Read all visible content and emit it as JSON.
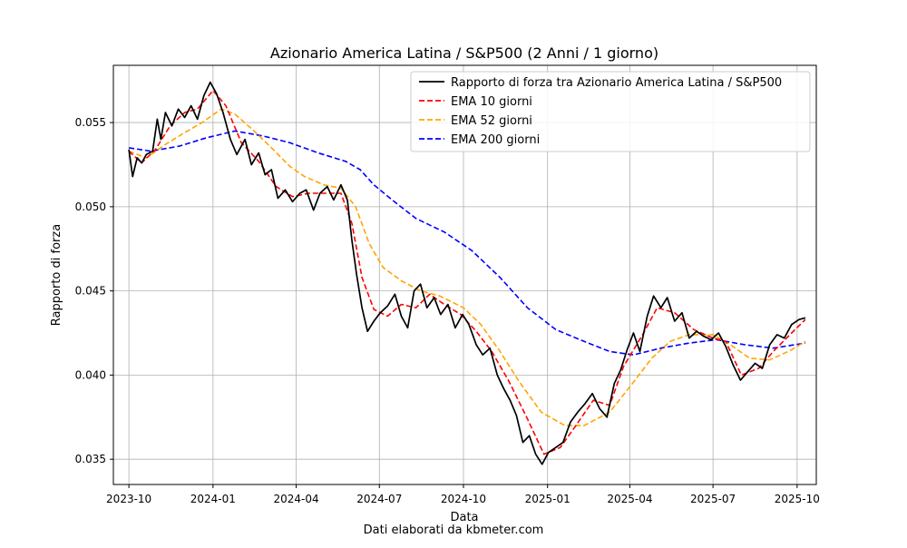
{
  "chart_data": {
    "type": "line",
    "title": "Azionario America Latina / S&P500 (2 Anni / 1 giorno)",
    "xlabel": "Data",
    "ylabel": "Rapporto di forza",
    "footer": "Dati elaborati da kbmeter.com",
    "x_ticks": [
      "2023-10",
      "2024-01",
      "2024-04",
      "2024-07",
      "2024-10",
      "2025-01",
      "2025-04",
      "2025-07",
      "2025-10"
    ],
    "y_ticks": [
      "0.035",
      "0.040",
      "0.045",
      "0.050",
      "0.055"
    ],
    "xlim": [
      "2023-09-14",
      "2025-10-22"
    ],
    "ylim": [
      0.0335,
      0.0584
    ],
    "grid": true,
    "legend_position": "top-right",
    "series": [
      {
        "name": "Rapporto di forza tra Azionario America Latina / S&P500",
        "color": "#000000",
        "style": "solid",
        "points": [
          [
            "2023-10-01",
            0.0534
          ],
          [
            "2023-10-05",
            0.0518
          ],
          [
            "2023-10-10",
            0.0529
          ],
          [
            "2023-10-15",
            0.0526
          ],
          [
            "2023-10-20",
            0.0531
          ],
          [
            "2023-10-27",
            0.0533
          ],
          [
            "2023-11-01",
            0.0552
          ],
          [
            "2023-11-05",
            0.054
          ],
          [
            "2023-11-10",
            0.0556
          ],
          [
            "2023-11-17",
            0.0548
          ],
          [
            "2023-11-24",
            0.0558
          ],
          [
            "2023-12-01",
            0.0553
          ],
          [
            "2023-12-08",
            0.056
          ],
          [
            "2023-12-15",
            0.0552
          ],
          [
            "2023-12-22",
            0.0566
          ],
          [
            "2023-12-29",
            0.0574
          ],
          [
            "2024-01-05",
            0.0567
          ],
          [
            "2024-01-12",
            0.0556
          ],
          [
            "2024-01-20",
            0.054
          ],
          [
            "2024-01-27",
            0.0531
          ],
          [
            "2024-02-05",
            0.054
          ],
          [
            "2024-02-12",
            0.0525
          ],
          [
            "2024-02-20",
            0.0532
          ],
          [
            "2024-02-27",
            0.0519
          ],
          [
            "2024-03-05",
            0.0522
          ],
          [
            "2024-03-12",
            0.0505
          ],
          [
            "2024-03-20",
            0.051
          ],
          [
            "2024-03-28",
            0.0503
          ],
          [
            "2024-04-05",
            0.0508
          ],
          [
            "2024-04-12",
            0.051
          ],
          [
            "2024-04-20",
            0.0498
          ],
          [
            "2024-04-27",
            0.0508
          ],
          [
            "2024-05-05",
            0.0512
          ],
          [
            "2024-05-12",
            0.0504
          ],
          [
            "2024-05-20",
            0.0513
          ],
          [
            "2024-05-27",
            0.0504
          ],
          [
            "2024-06-01",
            0.048
          ],
          [
            "2024-06-06",
            0.046
          ],
          [
            "2024-06-12",
            0.044
          ],
          [
            "2024-06-18",
            0.0426
          ],
          [
            "2024-06-25",
            0.0432
          ],
          [
            "2024-07-02",
            0.0437
          ],
          [
            "2024-07-10",
            0.0441
          ],
          [
            "2024-07-18",
            0.0448
          ],
          [
            "2024-07-25",
            0.0435
          ],
          [
            "2024-08-01",
            0.0428
          ],
          [
            "2024-08-08",
            0.045
          ],
          [
            "2024-08-15",
            0.0454
          ],
          [
            "2024-08-22",
            0.044
          ],
          [
            "2024-08-30",
            0.0446
          ],
          [
            "2024-09-06",
            0.0436
          ],
          [
            "2024-09-14",
            0.0442
          ],
          [
            "2024-09-22",
            0.0428
          ],
          [
            "2024-09-30",
            0.0436
          ],
          [
            "2024-10-07",
            0.043
          ],
          [
            "2024-10-15",
            0.0418
          ],
          [
            "2024-10-22",
            0.0412
          ],
          [
            "2024-10-30",
            0.0416
          ],
          [
            "2024-11-07",
            0.04
          ],
          [
            "2024-11-14",
            0.0392
          ],
          [
            "2024-11-21",
            0.0385
          ],
          [
            "2024-11-28",
            0.0376
          ],
          [
            "2024-12-05",
            0.036
          ],
          [
            "2024-12-12",
            0.0364
          ],
          [
            "2024-12-19",
            0.0353
          ],
          [
            "2024-12-26",
            0.0347
          ],
          [
            "2025-01-02",
            0.0354
          ],
          [
            "2025-01-10",
            0.0357
          ],
          [
            "2025-01-18",
            0.036
          ],
          [
            "2025-01-26",
            0.0372
          ],
          [
            "2025-02-03",
            0.0378
          ],
          [
            "2025-02-11",
            0.0383
          ],
          [
            "2025-02-19",
            0.0389
          ],
          [
            "2025-02-27",
            0.038
          ],
          [
            "2025-03-07",
            0.0375
          ],
          [
            "2025-03-15",
            0.0395
          ],
          [
            "2025-03-22",
            0.0403
          ],
          [
            "2025-03-29",
            0.0415
          ],
          [
            "2025-04-05",
            0.0425
          ],
          [
            "2025-04-12",
            0.0414
          ],
          [
            "2025-04-20",
            0.0435
          ],
          [
            "2025-04-27",
            0.0447
          ],
          [
            "2025-05-05",
            0.044
          ],
          [
            "2025-05-12",
            0.0446
          ],
          [
            "2025-05-20",
            0.0432
          ],
          [
            "2025-05-28",
            0.0437
          ],
          [
            "2025-06-05",
            0.0422
          ],
          [
            "2025-06-13",
            0.0426
          ],
          [
            "2025-06-21",
            0.0423
          ],
          [
            "2025-06-29",
            0.0421
          ],
          [
            "2025-07-07",
            0.0425
          ],
          [
            "2025-07-15",
            0.0417
          ],
          [
            "2025-07-23",
            0.0406
          ],
          [
            "2025-07-31",
            0.0397
          ],
          [
            "2025-08-08",
            0.0402
          ],
          [
            "2025-08-16",
            0.0407
          ],
          [
            "2025-08-24",
            0.0404
          ],
          [
            "2025-09-01",
            0.0418
          ],
          [
            "2025-09-09",
            0.0424
          ],
          [
            "2025-09-17",
            0.0422
          ],
          [
            "2025-09-25",
            0.043
          ],
          [
            "2025-10-03",
            0.0433
          ],
          [
            "2025-10-10",
            0.0434
          ]
        ]
      },
      {
        "name": "EMA 10 giorni",
        "color": "#ff0000",
        "style": "dashed",
        "points": [
          [
            "2023-10-01",
            0.0533
          ],
          [
            "2023-10-15",
            0.0526
          ],
          [
            "2023-10-30",
            0.0534
          ],
          [
            "2023-11-15",
            0.0548
          ],
          [
            "2023-12-01",
            0.0556
          ],
          [
            "2023-12-15",
            0.0558
          ],
          [
            "2024-01-01",
            0.0569
          ],
          [
            "2024-01-15",
            0.056
          ],
          [
            "2024-02-01",
            0.0538
          ],
          [
            "2024-02-20",
            0.0527
          ],
          [
            "2024-03-10",
            0.0512
          ],
          [
            "2024-03-28",
            0.0506
          ],
          [
            "2024-04-15",
            0.0508
          ],
          [
            "2024-05-01",
            0.0508
          ],
          [
            "2024-05-20",
            0.0508
          ],
          [
            "2024-06-01",
            0.049
          ],
          [
            "2024-06-12",
            0.0458
          ],
          [
            "2024-06-25",
            0.0439
          ],
          [
            "2024-07-10",
            0.0435
          ],
          [
            "2024-07-25",
            0.0442
          ],
          [
            "2024-08-10",
            0.044
          ],
          [
            "2024-08-25",
            0.0448
          ],
          [
            "2024-09-10",
            0.0442
          ],
          [
            "2024-09-28",
            0.0436
          ],
          [
            "2024-10-15",
            0.0426
          ],
          [
            "2024-11-01",
            0.0414
          ],
          [
            "2024-11-20",
            0.0396
          ],
          [
            "2024-12-10",
            0.0374
          ],
          [
            "2024-12-28",
            0.0353
          ],
          [
            "2025-01-15",
            0.0357
          ],
          [
            "2025-02-01",
            0.037
          ],
          [
            "2025-02-20",
            0.0385
          ],
          [
            "2025-03-10",
            0.0382
          ],
          [
            "2025-03-25",
            0.0405
          ],
          [
            "2025-04-15",
            0.0424
          ],
          [
            "2025-05-01",
            0.044
          ],
          [
            "2025-05-20",
            0.0437
          ],
          [
            "2025-06-10",
            0.0427
          ],
          [
            "2025-07-01",
            0.0422
          ],
          [
            "2025-07-15",
            0.042
          ],
          [
            "2025-08-01",
            0.04
          ],
          [
            "2025-08-20",
            0.0404
          ],
          [
            "2025-09-05",
            0.0414
          ],
          [
            "2025-09-25",
            0.0425
          ],
          [
            "2025-10-10",
            0.0433
          ]
        ]
      },
      {
        "name": "EMA 52 giorni",
        "color": "#ffa500",
        "style": "dashed",
        "points": [
          [
            "2023-10-01",
            0.0533
          ],
          [
            "2023-10-20",
            0.0529
          ],
          [
            "2023-11-10",
            0.0537
          ],
          [
            "2023-12-01",
            0.0544
          ],
          [
            "2023-12-20",
            0.055
          ],
          [
            "2024-01-10",
            0.0558
          ],
          [
            "2024-01-25",
            0.0555
          ],
          [
            "2024-02-15",
            0.0545
          ],
          [
            "2024-03-05",
            0.0535
          ],
          [
            "2024-03-25",
            0.0524
          ],
          [
            "2024-04-10",
            0.0518
          ],
          [
            "2024-05-01",
            0.0513
          ],
          [
            "2024-05-20",
            0.0511
          ],
          [
            "2024-06-05",
            0.05
          ],
          [
            "2024-06-20",
            0.0478
          ],
          [
            "2024-07-05",
            0.0464
          ],
          [
            "2024-07-25",
            0.0456
          ],
          [
            "2024-08-15",
            0.045
          ],
          [
            "2024-09-05",
            0.0447
          ],
          [
            "2024-10-01",
            0.044
          ],
          [
            "2024-10-20",
            0.043
          ],
          [
            "2024-11-10",
            0.0414
          ],
          [
            "2024-12-01",
            0.0396
          ],
          [
            "2024-12-25",
            0.0378
          ],
          [
            "2025-01-20",
            0.037
          ],
          [
            "2025-02-10",
            0.037
          ],
          [
            "2025-03-10",
            0.0378
          ],
          [
            "2025-04-01",
            0.0393
          ],
          [
            "2025-04-25",
            0.041
          ],
          [
            "2025-05-15",
            0.042
          ],
          [
            "2025-06-05",
            0.0424
          ],
          [
            "2025-07-01",
            0.0424
          ],
          [
            "2025-07-20",
            0.0418
          ],
          [
            "2025-08-10",
            0.041
          ],
          [
            "2025-09-01",
            0.0409
          ],
          [
            "2025-09-25",
            0.0415
          ],
          [
            "2025-10-10",
            0.042
          ]
        ]
      },
      {
        "name": "EMA 200 giorni",
        "color": "#0000ff",
        "style": "dashed",
        "points": [
          [
            "2023-10-01",
            0.0535
          ],
          [
            "2023-10-25",
            0.0533
          ],
          [
            "2023-11-25",
            0.0536
          ],
          [
            "2023-12-25",
            0.0541
          ],
          [
            "2024-01-25",
            0.0545
          ],
          [
            "2024-02-25",
            0.0542
          ],
          [
            "2024-03-25",
            0.0538
          ],
          [
            "2024-04-25",
            0.0532
          ],
          [
            "2024-05-25",
            0.0527
          ],
          [
            "2024-06-10",
            0.0522
          ],
          [
            "2024-06-25",
            0.0513
          ],
          [
            "2024-07-15",
            0.0504
          ],
          [
            "2024-08-10",
            0.0493
          ],
          [
            "2024-09-10",
            0.0485
          ],
          [
            "2024-10-10",
            0.0474
          ],
          [
            "2024-11-10",
            0.0458
          ],
          [
            "2024-12-10",
            0.044
          ],
          [
            "2025-01-10",
            0.0427
          ],
          [
            "2025-02-10",
            0.042
          ],
          [
            "2025-03-10",
            0.0414
          ],
          [
            "2025-04-05",
            0.0412
          ],
          [
            "2025-05-05",
            0.0416
          ],
          [
            "2025-06-05",
            0.0419
          ],
          [
            "2025-07-05",
            0.0421
          ],
          [
            "2025-08-05",
            0.0418
          ],
          [
            "2025-09-05",
            0.0416
          ],
          [
            "2025-10-10",
            0.0419
          ]
        ]
      }
    ]
  }
}
